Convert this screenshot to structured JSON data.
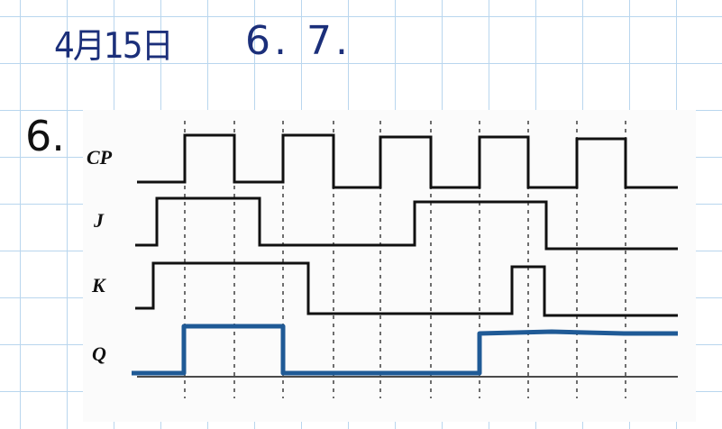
{
  "handwriting": {
    "date": "4月15日",
    "problems": "6. 7.",
    "problem_number": "6."
  },
  "diagram": {
    "signals": [
      {
        "name": "CP",
        "color": "#111111"
      },
      {
        "name": "J",
        "color": "#111111"
      },
      {
        "name": "K",
        "color": "#111111"
      },
      {
        "name": "Q",
        "color": "#1f5a96"
      }
    ]
  }
}
